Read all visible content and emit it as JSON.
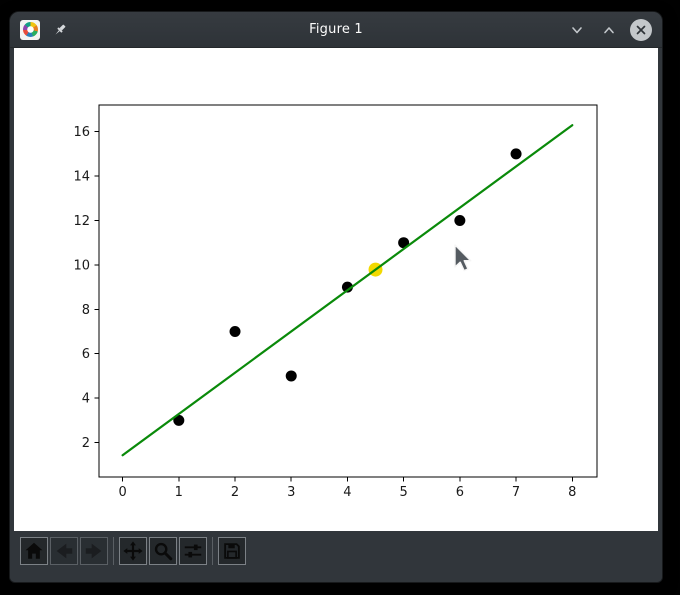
{
  "window": {
    "title": "Figure 1",
    "app_icon": "matplotlib-logo-icon",
    "pin_icon": "pin-icon",
    "controls": [
      {
        "name": "minimize",
        "icon": "chevron-down-icon"
      },
      {
        "name": "maximize",
        "icon": "chevron-up-icon"
      },
      {
        "name": "close",
        "icon": "close-x-icon"
      }
    ]
  },
  "toolbar": {
    "groups": [
      [
        {
          "name": "home",
          "icon": "home-icon",
          "disabled": false
        },
        {
          "name": "back",
          "icon": "arrow-left-icon",
          "disabled": true
        },
        {
          "name": "forward",
          "icon": "arrow-right-icon",
          "disabled": true
        }
      ],
      [
        {
          "name": "pan",
          "icon": "move-arrows-icon",
          "disabled": false
        },
        {
          "name": "zoom",
          "icon": "magnifier-icon",
          "disabled": false
        },
        {
          "name": "configure-subplots",
          "icon": "sliders-icon",
          "disabled": false
        }
      ],
      [
        {
          "name": "save",
          "icon": "floppy-disk-icon",
          "disabled": false
        }
      ]
    ]
  },
  "theme": {
    "titlebar_bg": "#31363b",
    "canvas_bg": "#ffffff",
    "axis_color": "#000000",
    "tick_label_color": "#1a1a1a"
  },
  "chart_data": {
    "type": "scatter",
    "title": "",
    "xlabel": "",
    "ylabel": "",
    "xlim": [
      -0.42,
      8.44
    ],
    "ylim": [
      0.45,
      17.2
    ],
    "xticks": [
      0,
      1,
      2,
      3,
      4,
      5,
      6,
      7,
      8
    ],
    "yticks": [
      2,
      4,
      6,
      8,
      10,
      12,
      14,
      16
    ],
    "grid": false,
    "legend": null,
    "series": [
      {
        "name": "data-points",
        "type": "scatter",
        "x": [
          1,
          2,
          3,
          4,
          5,
          6,
          7
        ],
        "y": [
          3,
          7,
          5,
          9,
          11,
          12,
          15
        ],
        "color": "#000000",
        "marker_radius": 5.5
      },
      {
        "name": "highlighted-point",
        "type": "scatter",
        "x": [
          4.5
        ],
        "y": [
          9.79
        ],
        "color": "#f2d900",
        "marker_radius": 7
      },
      {
        "name": "fit-line",
        "type": "line",
        "x": [
          0,
          8
        ],
        "y": [
          1.43,
          16.29
        ],
        "color": "#0a8a0a",
        "width": 2.2
      }
    ]
  }
}
